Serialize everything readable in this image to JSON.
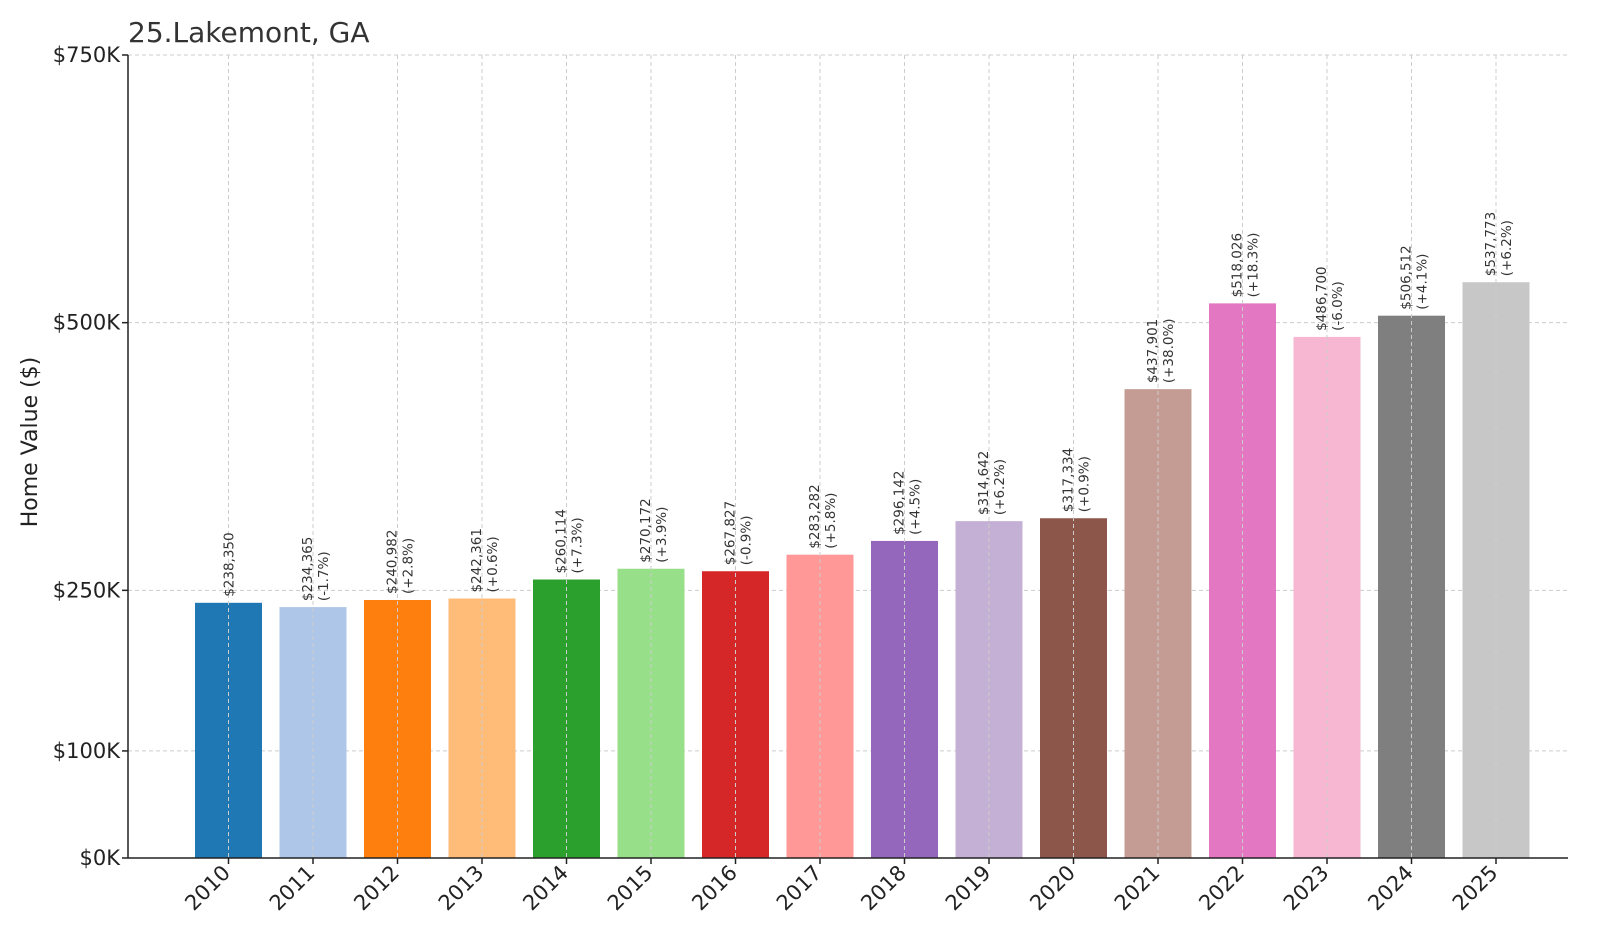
{
  "chart_data": {
    "type": "bar",
    "title": "25.Lakemont, GA",
    "xlabel": "",
    "ylabel": "Home Value ($)",
    "ylim": [
      0,
      750000
    ],
    "yticks": [
      0,
      100000,
      250000,
      500000,
      750000
    ],
    "ytick_labels": [
      "$0K",
      "$100K",
      "$250K",
      "$500K",
      "$750K"
    ],
    "grid": true,
    "categories": [
      "2010",
      "2011",
      "2012",
      "2013",
      "2014",
      "2015",
      "2016",
      "2017",
      "2018",
      "2019",
      "2020",
      "2021",
      "2022",
      "2023",
      "2024",
      "2025"
    ],
    "values": [
      238350,
      234365,
      240982,
      242361,
      260114,
      270172,
      267827,
      283282,
      296142,
      314642,
      317334,
      437901,
      518026,
      486700,
      506512,
      537773
    ],
    "value_labels": [
      "$238,350",
      "$234,365",
      "$240,982",
      "$242,361",
      "$260,114",
      "$270,172",
      "$267,827",
      "$283,282",
      "$296,142",
      "$314,642",
      "$317,334",
      "$437,901",
      "$518,026",
      "$486,700",
      "$506,512",
      "$537,773"
    ],
    "change_labels": [
      "",
      "(-1.7%)",
      "(+2.8%)",
      "(+0.6%)",
      "(+7.3%)",
      "(+3.9%)",
      "(-0.9%)",
      "(+5.8%)",
      "(+4.5%)",
      "(+6.2%)",
      "(+0.9%)",
      "(+38.0%)",
      "(+18.3%)",
      "(-6.0%)",
      "(+4.1%)",
      "(+6.2%)"
    ],
    "colors": [
      "#1f77b4",
      "#aec7e8",
      "#ff7f0e",
      "#ffbb78",
      "#2ca02c",
      "#98df8a",
      "#d62728",
      "#ff9896",
      "#9467bd",
      "#c5b0d5",
      "#8c564b",
      "#c49c94",
      "#e377c2",
      "#f7b6d2",
      "#7f7f7f",
      "#c7c7c7"
    ]
  }
}
